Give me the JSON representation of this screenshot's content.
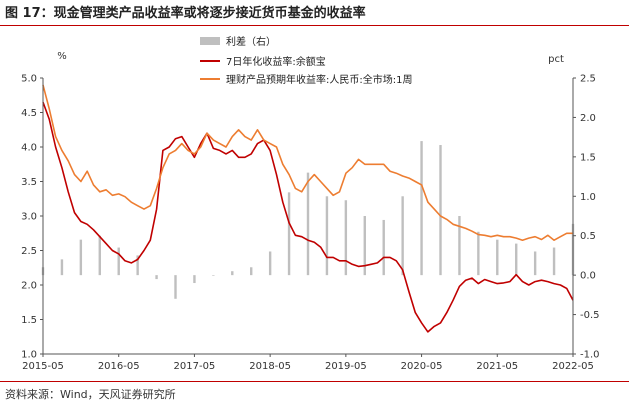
{
  "title": "图 17：现金管理类产品收益率或将逐步接近货币基金的收益率",
  "source": "资料来源：Wind，天风证券研究所",
  "chart_data": {
    "type": "line",
    "y_left_label": "%",
    "y_right_label": "pct",
    "ylim_left": [
      1.0,
      5.0
    ],
    "ylim_right": [
      -1.0,
      2.5
    ],
    "y_left_ticks": [
      "1.0",
      "1.5",
      "2.0",
      "2.5",
      "3.0",
      "3.5",
      "4.0",
      "4.5",
      "5.0"
    ],
    "y_right_ticks": [
      "-1.0",
      "-0.5",
      "0.0",
      "0.5",
      "1.0",
      "1.5",
      "2.0",
      "2.5"
    ],
    "x_range": [
      "2015-05",
      "2022-05"
    ],
    "x_ticks": [
      "2015-05",
      "2016-05",
      "2017-05",
      "2018-05",
      "2019-05",
      "2020-05",
      "2021-05",
      "2022-05"
    ],
    "legend_position": "top",
    "series": [
      {
        "name": "利差（右）",
        "type": "bar",
        "axis": "right",
        "color": "#bfbfbf",
        "x": [
          "2015-05",
          "2015-08",
          "2015-11",
          "2016-02",
          "2016-05",
          "2016-08",
          "2016-11",
          "2017-02",
          "2017-05",
          "2017-08",
          "2017-11",
          "2018-02",
          "2018-05",
          "2018-08",
          "2018-11",
          "2019-02",
          "2019-05",
          "2019-08",
          "2019-11",
          "2020-02",
          "2020-05",
          "2020-08",
          "2020-11",
          "2021-02",
          "2021-05",
          "2021-08",
          "2021-11",
          "2022-02",
          "2022-05"
        ],
        "values": [
          0.1,
          0.2,
          0.45,
          0.5,
          0.35,
          0.25,
          -0.05,
          -0.3,
          -0.1,
          0.0,
          0.05,
          0.1,
          0.3,
          1.05,
          1.3,
          1.0,
          0.95,
          0.75,
          0.7,
          1.0,
          1.7,
          1.65,
          0.75,
          0.55,
          0.45,
          0.4,
          0.3,
          0.35,
          0.65
        ]
      },
      {
        "name": "7日年化收益率:余额宝",
        "type": "line",
        "axis": "left",
        "color": "#c00000",
        "x": [
          "2015-05",
          "2015-06",
          "2015-07",
          "2015-08",
          "2015-09",
          "2015-10",
          "2015-11",
          "2015-12",
          "2016-01",
          "2016-02",
          "2016-03",
          "2016-04",
          "2016-05",
          "2016-06",
          "2016-07",
          "2016-08",
          "2016-09",
          "2016-10",
          "2016-11",
          "2016-12",
          "2017-01",
          "2017-02",
          "2017-03",
          "2017-04",
          "2017-05",
          "2017-06",
          "2017-07",
          "2017-08",
          "2017-09",
          "2017-10",
          "2017-11",
          "2017-12",
          "2018-01",
          "2018-02",
          "2018-03",
          "2018-04",
          "2018-05",
          "2018-06",
          "2018-07",
          "2018-08",
          "2018-09",
          "2018-10",
          "2018-11",
          "2018-12",
          "2019-01",
          "2019-02",
          "2019-03",
          "2019-04",
          "2019-05",
          "2019-06",
          "2019-07",
          "2019-08",
          "2019-09",
          "2019-10",
          "2019-11",
          "2019-12",
          "2020-01",
          "2020-02",
          "2020-03",
          "2020-04",
          "2020-05",
          "2020-06",
          "2020-07",
          "2020-08",
          "2020-09",
          "2020-10",
          "2020-11",
          "2020-12",
          "2021-01",
          "2021-02",
          "2021-03",
          "2021-04",
          "2021-05",
          "2021-06",
          "2021-07",
          "2021-08",
          "2021-09",
          "2021-10",
          "2021-11",
          "2021-12",
          "2022-01",
          "2022-02",
          "2022-03",
          "2022-04",
          "2022-05"
        ],
        "values": [
          4.65,
          4.4,
          4.0,
          3.7,
          3.35,
          3.05,
          2.92,
          2.88,
          2.8,
          2.7,
          2.6,
          2.5,
          2.45,
          2.35,
          2.32,
          2.37,
          2.5,
          2.65,
          3.1,
          3.95,
          4.0,
          4.12,
          4.15,
          4.0,
          3.85,
          4.05,
          4.2,
          3.98,
          3.95,
          3.9,
          3.95,
          3.85,
          3.85,
          3.9,
          4.05,
          4.1,
          3.95,
          3.6,
          3.2,
          2.9,
          2.72,
          2.7,
          2.65,
          2.62,
          2.55,
          2.4,
          2.4,
          2.35,
          2.35,
          2.3,
          2.27,
          2.28,
          2.3,
          2.32,
          2.4,
          2.4,
          2.35,
          2.22,
          1.9,
          1.6,
          1.45,
          1.32,
          1.4,
          1.45,
          1.6,
          1.78,
          1.98,
          2.07,
          2.1,
          2.02,
          2.08,
          2.05,
          2.02,
          2.03,
          2.05,
          2.15,
          2.05,
          2.0,
          2.05,
          2.07,
          2.05,
          2.02,
          2.0,
          1.95,
          1.78
        ]
      },
      {
        "name": "理财产品预期年收益率:人民币:全市场:1周",
        "type": "line",
        "axis": "left",
        "color": "#ed7d31",
        "x": [
          "2015-05",
          "2015-06",
          "2015-07",
          "2015-08",
          "2015-09",
          "2015-10",
          "2015-11",
          "2015-12",
          "2016-01",
          "2016-02",
          "2016-03",
          "2016-04",
          "2016-05",
          "2016-06",
          "2016-07",
          "2016-08",
          "2016-09",
          "2016-10",
          "2016-11",
          "2016-12",
          "2017-01",
          "2017-02",
          "2017-03",
          "2017-04",
          "2017-05",
          "2017-06",
          "2017-07",
          "2017-08",
          "2017-09",
          "2017-10",
          "2017-11",
          "2017-12",
          "2018-01",
          "2018-02",
          "2018-03",
          "2018-04",
          "2018-05",
          "2018-06",
          "2018-07",
          "2018-08",
          "2018-09",
          "2018-10",
          "2018-11",
          "2018-12",
          "2019-01",
          "2019-02",
          "2019-03",
          "2019-04",
          "2019-05",
          "2019-06",
          "2019-07",
          "2019-08",
          "2019-09",
          "2019-10",
          "2019-11",
          "2019-12",
          "2020-01",
          "2020-02",
          "2020-03",
          "2020-04",
          "2020-05",
          "2020-06",
          "2020-07",
          "2020-08",
          "2020-09",
          "2020-10",
          "2020-11",
          "2020-12",
          "2021-01",
          "2021-02",
          "2021-03",
          "2021-04",
          "2021-05",
          "2021-06",
          "2021-07",
          "2021-08",
          "2021-09",
          "2021-10",
          "2021-11",
          "2021-12",
          "2022-01",
          "2022-02",
          "2022-03",
          "2022-04",
          "2022-05"
        ],
        "values": [
          4.9,
          4.55,
          4.15,
          3.95,
          3.8,
          3.6,
          3.5,
          3.65,
          3.45,
          3.35,
          3.38,
          3.3,
          3.32,
          3.28,
          3.2,
          3.15,
          3.1,
          3.15,
          3.4,
          3.7,
          3.9,
          3.95,
          4.05,
          3.95,
          3.9,
          4.0,
          4.2,
          4.1,
          4.05,
          4.0,
          4.15,
          4.25,
          4.15,
          4.1,
          4.25,
          4.1,
          4.05,
          4.0,
          3.75,
          3.6,
          3.4,
          3.35,
          3.5,
          3.6,
          3.5,
          3.4,
          3.3,
          3.35,
          3.62,
          3.7,
          3.82,
          3.75,
          3.75,
          3.75,
          3.75,
          3.65,
          3.62,
          3.58,
          3.55,
          3.5,
          3.45,
          3.2,
          3.1,
          3.0,
          2.95,
          2.88,
          2.85,
          2.82,
          2.78,
          2.73,
          2.72,
          2.7,
          2.72,
          2.7,
          2.7,
          2.68,
          2.65,
          2.68,
          2.7,
          2.66,
          2.72,
          2.65,
          2.7,
          2.75,
          2.75
        ]
      }
    ]
  }
}
